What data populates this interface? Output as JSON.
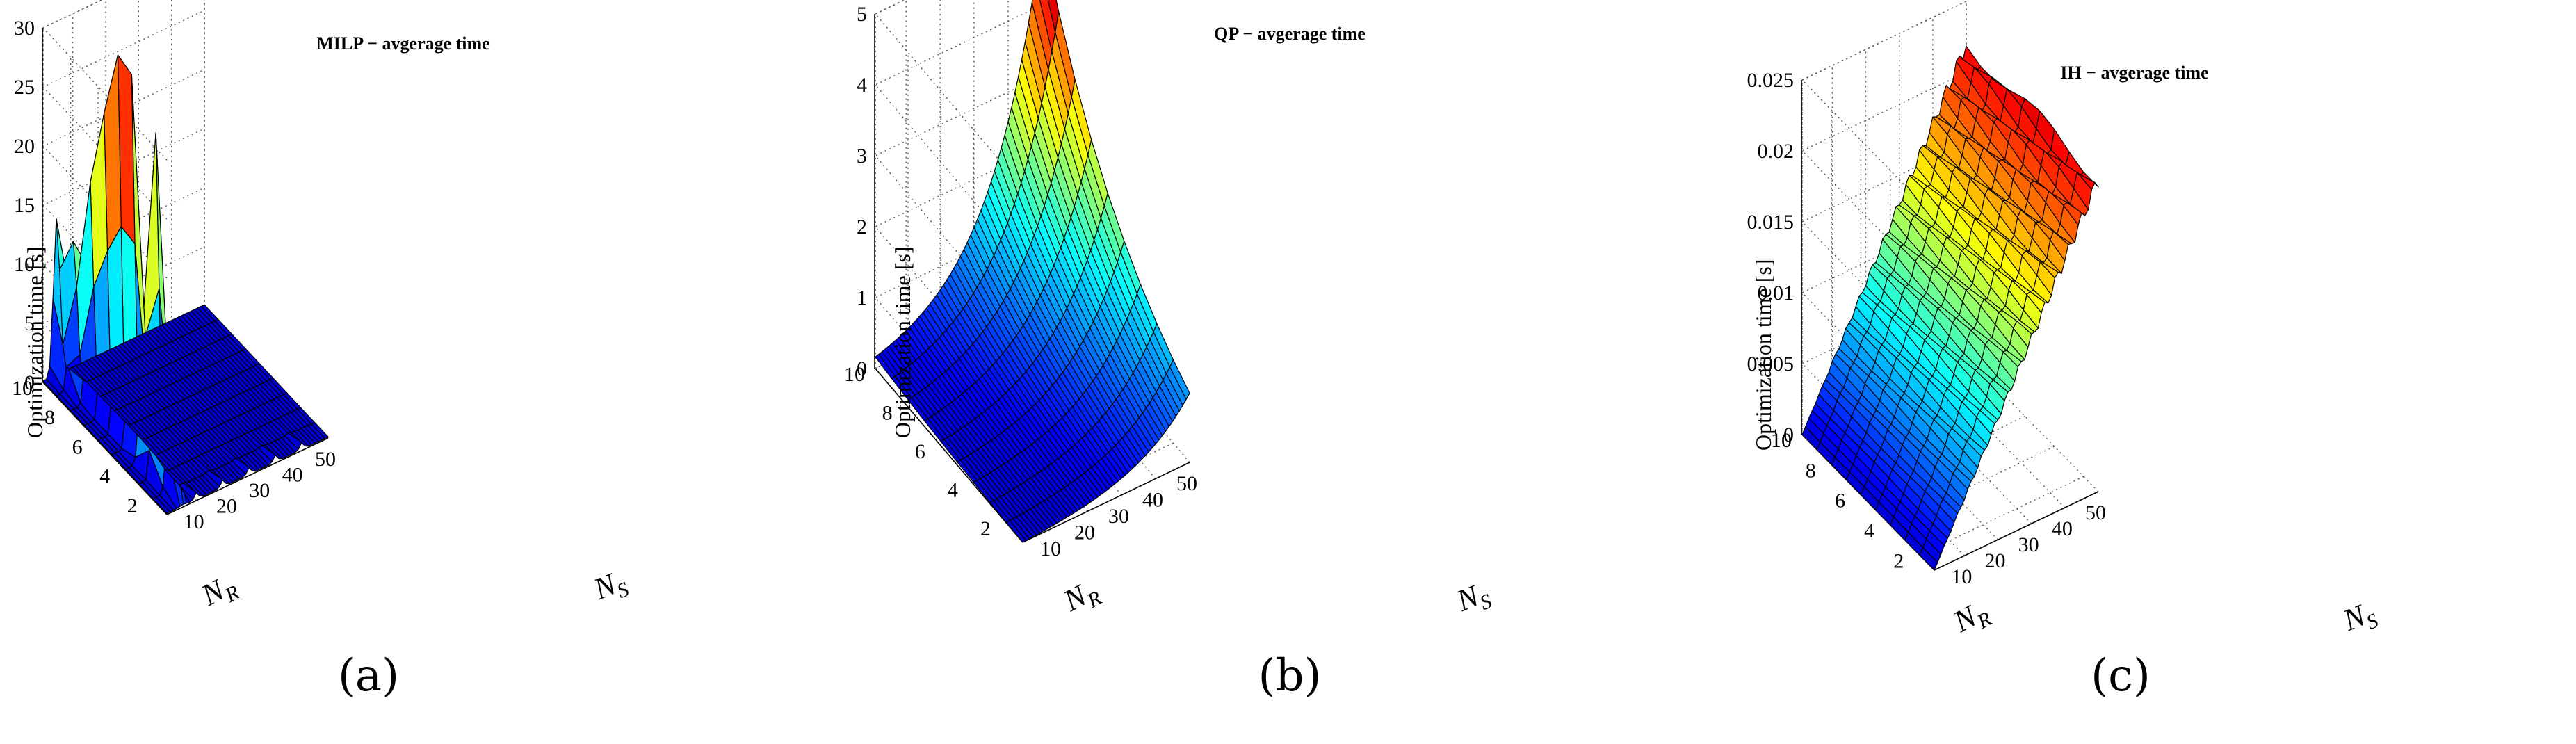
{
  "figure": {
    "panels": [
      {
        "title": "MILP − avgerage time",
        "label": "(a)",
        "zlabel": "Optimization time [s]",
        "xlabel_base": "N",
        "xlabel_sub": "S",
        "ylabel_base": "N",
        "ylabel_sub": "R",
        "zticks": [
          "0",
          "5",
          "10",
          "15",
          "20",
          "25",
          "30"
        ],
        "xticks": [
          "10",
          "20",
          "30",
          "40",
          "50"
        ],
        "yticks": [
          "2",
          "4",
          "6",
          "8",
          "10"
        ]
      },
      {
        "title": "QP − avgerage time",
        "label": "(b)",
        "zlabel": "Optimization time [s]",
        "xlabel_base": "N",
        "xlabel_sub": "S",
        "ylabel_base": "N",
        "ylabel_sub": "R",
        "zticks": [
          "0",
          "1",
          "2",
          "3",
          "4",
          "5"
        ],
        "xticks": [
          "10",
          "20",
          "30",
          "40",
          "50"
        ],
        "yticks": [
          "2",
          "4",
          "6",
          "8",
          "10"
        ]
      },
      {
        "title": "IH − avgerage time",
        "label": "(c)",
        "zlabel": "Optimization time [s]",
        "xlabel_base": "N",
        "xlabel_sub": "S",
        "ylabel_base": "N",
        "ylabel_sub": "R",
        "zticks": [
          "0",
          "0.005",
          "0.01",
          "0.015",
          "0.02",
          "0.025"
        ],
        "xticks": [
          "10",
          "20",
          "30",
          "40",
          "50"
        ],
        "yticks": [
          "2",
          "4",
          "6",
          "8",
          "10"
        ]
      }
    ]
  },
  "chart_data": [
    {
      "type": "surface",
      "title": "MILP − avgerage time",
      "xlabel": "N_S",
      "ylabel": "N_R",
      "zlabel": "Optimization time [s]",
      "x": [
        1,
        50
      ],
      "y": [
        1,
        10
      ],
      "zlim": [
        0,
        30
      ],
      "colormap": "jet",
      "grid": true,
      "peaks": [
        {
          "N_S": 5,
          "N_R": 10,
          "value": 12
        },
        {
          "N_S": 6,
          "N_R": 9,
          "value": 9
        },
        {
          "N_S": 7,
          "N_R": 8,
          "value": 13
        },
        {
          "N_S": 7,
          "N_R": 7,
          "value": 17
        },
        {
          "N_S": 7,
          "N_R": 6,
          "value": 21
        },
        {
          "N_S": 7,
          "N_R": 5,
          "value": 26
        },
        {
          "N_S": 6,
          "N_R": 3,
          "value": 29
        }
      ],
      "spikes_at_N_R_1": [
        {
          "N_S": 10,
          "value": 0.6
        },
        {
          "N_S": 18,
          "value": 0.6
        },
        {
          "N_S": 26,
          "value": 0.6
        },
        {
          "N_S": 34,
          "value": 0.6
        },
        {
          "N_S": 42,
          "value": 0.6
        }
      ],
      "baseline_value": 0.1
    },
    {
      "type": "surface",
      "title": "QP − avgerage time",
      "xlabel": "N_S",
      "ylabel": "N_R",
      "zlabel": "Optimization time [s]",
      "x": [
        1,
        50
      ],
      "y": [
        1,
        10
      ],
      "zlim": [
        0,
        5
      ],
      "colormap": "jet",
      "grid": true,
      "model": "exponential growth in N_S and N_R",
      "max": {
        "N_S": 50,
        "N_R": 10,
        "value": 5.0
      },
      "min": {
        "N_S": 1,
        "N_R": 1,
        "value": 0.0
      }
    },
    {
      "type": "surface",
      "title": "IH − avgerage time",
      "xlabel": "N_S",
      "ylabel": "N_R",
      "zlabel": "Optimization time [s]",
      "x": [
        1,
        50
      ],
      "y": [
        1,
        10
      ],
      "zlim": [
        0,
        0.025
      ],
      "colormap": "jet",
      "grid": true,
      "model": "approximately linear growth in N_S",
      "at_N_S_1": 0.0,
      "at_N_S_50": 0.022
    }
  ]
}
